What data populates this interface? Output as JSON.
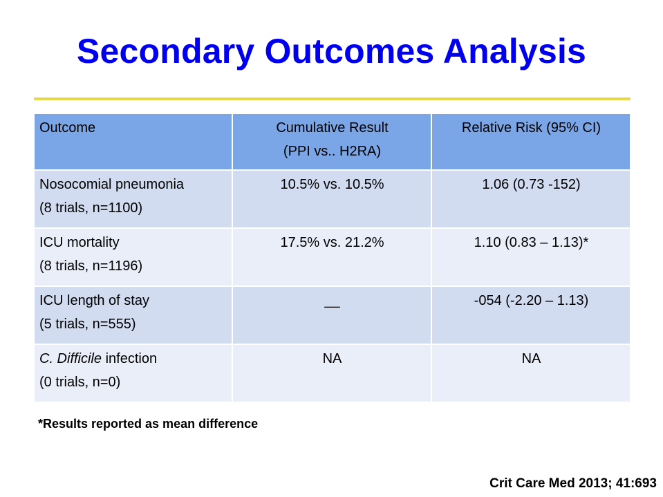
{
  "slide": {
    "title": "Secondary Outcomes Analysis",
    "footnote": "*Results reported as mean difference",
    "citation": "Crit Care Med 2013; 41:693",
    "colors": {
      "title": "#0000ee",
      "rule": "#e6d84a",
      "header_bg": "#7aa6e8",
      "row_dark": "#d1dcf1",
      "row_light": "#e9eef8"
    }
  },
  "table": {
    "headers": [
      {
        "line1": "Outcome",
        "line2": ""
      },
      {
        "line1": "Cumulative Result",
        "line2": "(PPI vs.. H2RA)"
      },
      {
        "line1": "Relative Risk (95% CI)",
        "line2": ""
      }
    ],
    "rows": [
      {
        "outcome_main": "Nosocomial pneumonia",
        "outcome_italic": "",
        "outcome_sub": "(8 trials, n=1100)",
        "result": "10.5% vs. 10.5%",
        "risk": "1.06 (0.73 -152)"
      },
      {
        "outcome_main": "ICU mortality",
        "outcome_italic": "",
        "outcome_sub": "(8 trials, n=1196)",
        "result": "17.5% vs. 21.2%",
        "risk": "1.10 (0.83 – 1.13)*"
      },
      {
        "outcome_main": "ICU length of stay",
        "outcome_italic": "",
        "outcome_sub": "(5 trials, n=555)",
        "result": "__",
        "risk": "-054 (-2.20 – 1.13)"
      },
      {
        "outcome_main": " infection",
        "outcome_italic": "C. Difficile",
        "outcome_sub": "(0 trials, n=0)",
        "result": "NA",
        "risk": "NA"
      }
    ]
  }
}
